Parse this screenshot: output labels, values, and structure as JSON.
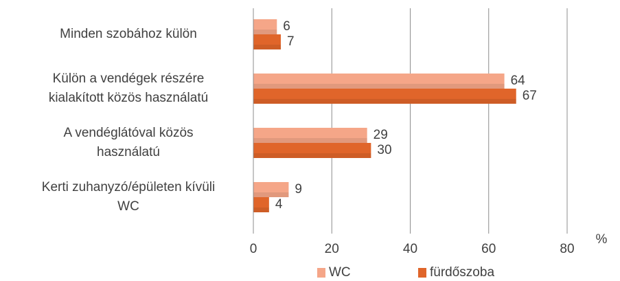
{
  "chart_data": {
    "type": "bar",
    "orientation": "horizontal",
    "categories": [
      "Minden szobához külön",
      "Külön a vendégek részére\nkialakított közös használatú",
      "A vendéglátóval közös\nhasználatú",
      "Kerti zuhanyzó/épületen kívüli\nWC"
    ],
    "series": [
      {
        "name": "WC",
        "color": "#f5a688",
        "values": [
          6,
          64,
          29,
          9
        ]
      },
      {
        "name": "fürdőszoba",
        "color": "#e0652a",
        "values": [
          7,
          67,
          30,
          4
        ]
      }
    ],
    "xlabel": "%",
    "xlim": [
      0,
      80
    ],
    "xticks": [
      0,
      20,
      40,
      60,
      80
    ],
    "grid": true,
    "legend": "bottom"
  }
}
